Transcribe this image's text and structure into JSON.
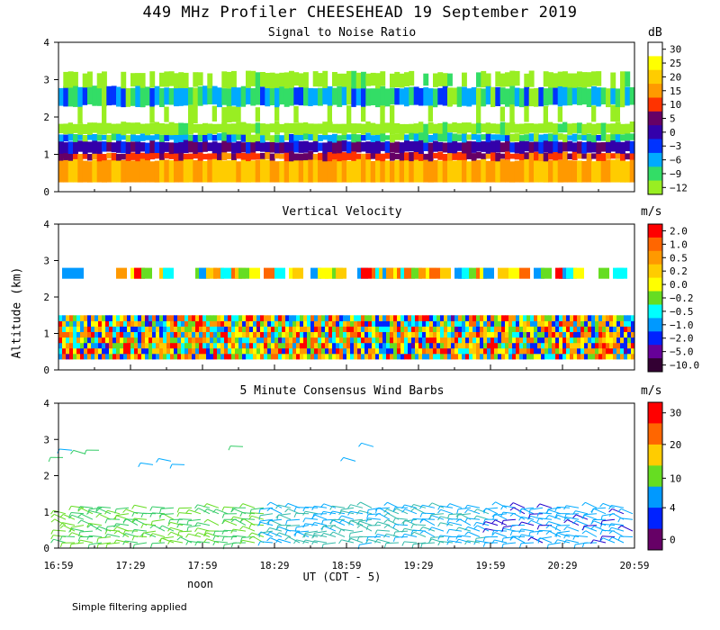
{
  "title": "449 MHz Profiler CHEESEHEAD 19 September 2019",
  "y_axis_label": "Altitude (km)",
  "x_axis_label": "UT  (CDT - 5)",
  "noon_label": "noon",
  "footer_note": "Simple filtering applied",
  "x_ticks": [
    "16:59",
    "17:29",
    "17:59",
    "18:29",
    "18:59",
    "19:29",
    "19:59",
    "20:29",
    "20:59"
  ],
  "y_ticks": [
    "0",
    "1",
    "2",
    "3",
    "4"
  ],
  "chart_data": [
    {
      "type": "heatmap",
      "title": "Signal to Noise Ratio",
      "unit": "dB",
      "x_range": [
        "16:59",
        "20:59"
      ],
      "y_range_km": [
        0,
        4
      ],
      "colorbar": {
        "labels": [
          "30",
          "25",
          "20",
          "15",
          "10",
          "5",
          "0",
          "−3",
          "−6",
          "−9",
          "−12"
        ],
        "colors": [
          "#ffffff",
          "#ffff00",
          "#ffcc00",
          "#ff9900",
          "#ff3300",
          "#660066",
          "#3300aa",
          "#0033ff",
          "#00aaff",
          "#33dd66",
          "#99ee22"
        ]
      },
      "layers": [
        {
          "from_km": 0.25,
          "to_km": 0.85,
          "value_db": 20
        },
        {
          "from_km": 0.85,
          "to_km": 1.05,
          "value_db": 12
        },
        {
          "from_km": 1.05,
          "to_km": 1.35,
          "value_db": 3
        },
        {
          "from_km": 1.35,
          "to_km": 1.55,
          "value_db": -6
        },
        {
          "from_km": 1.55,
          "to_km": 1.85,
          "value_db": -12
        },
        {
          "from_km": 1.85,
          "to_km": 2.3,
          "value_db": 30
        },
        {
          "from_km": 2.3,
          "to_km": 2.8,
          "value_db": -6
        },
        {
          "from_km": 2.8,
          "to_km": 3.2,
          "value_db": -12
        }
      ]
    },
    {
      "type": "heatmap",
      "title": "Vertical Velocity",
      "unit": "m/s",
      "x_range": [
        "16:59",
        "20:59"
      ],
      "y_range_km": [
        0,
        4
      ],
      "colorbar": {
        "labels": [
          "2.0",
          "1.0",
          "0.5",
          "0.2",
          "0.0",
          "−0.2",
          "−0.5",
          "−1.0",
          "−2.0",
          "−5.0",
          "−10.0"
        ],
        "colors": [
          "#ff0000",
          "#ff6600",
          "#ff9900",
          "#ffcc00",
          "#ffff00",
          "#66dd22",
          "#00ffff",
          "#0099ff",
          "#0022ff",
          "#660099",
          "#330033"
        ]
      },
      "data_ranges_km": [
        [
          0.3,
          1.5
        ],
        [
          2.3,
          2.8
        ]
      ]
    },
    {
      "type": "scatter",
      "title": "5 Minute Consensus Wind Barbs",
      "unit": "m/s",
      "x_range": [
        "16:59",
        "20:59"
      ],
      "y_range_km": [
        0,
        4
      ],
      "colorbar": {
        "labels": [
          "30",
          "20",
          "10",
          "4",
          "0"
        ],
        "colors": [
          "#ff0000",
          "#ff6600",
          "#ffcc00",
          "#66dd22",
          "#0099ff",
          "#0022ff",
          "#660066"
        ]
      },
      "data_ranges_km": [
        [
          0.0,
          1.2
        ],
        [
          2.3,
          2.9
        ]
      ]
    }
  ]
}
